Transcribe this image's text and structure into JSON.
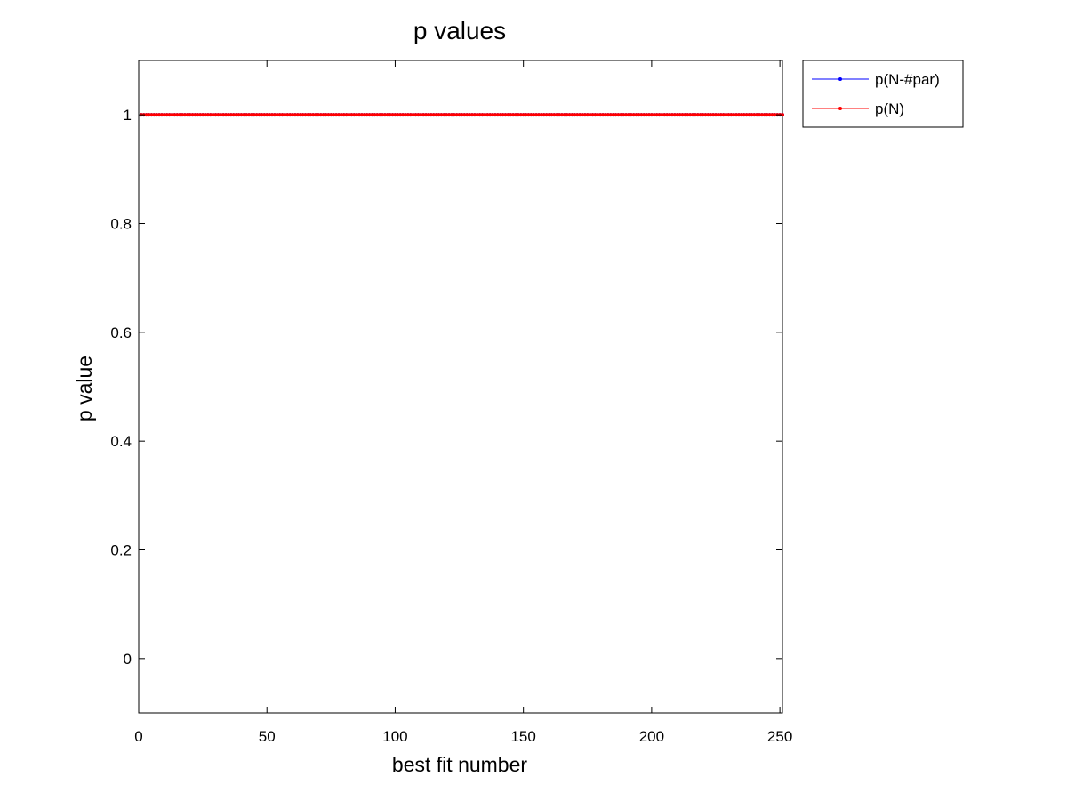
{
  "chart_data": {
    "type": "line",
    "title": "p values",
    "xlabel": "best fit number",
    "ylabel": "p value",
    "xlim": [
      0,
      251
    ],
    "ylim": [
      -0.1,
      1.1
    ],
    "xticks": [
      0,
      50,
      100,
      150,
      200,
      250
    ],
    "xtick_labels": [
      "0",
      "50",
      "100",
      "150",
      "200",
      "250"
    ],
    "yticks": [
      0,
      0.2,
      0.4,
      0.6,
      0.8,
      1
    ],
    "ytick_labels": [
      "0",
      "0.2",
      "0.4",
      "0.6",
      "0.8",
      "1"
    ],
    "grid": false,
    "legend_position": "outside-top-right",
    "series": [
      {
        "name": "p(N-#par)",
        "color": "#0000ff",
        "marker": "dot",
        "x_start": 1,
        "x_end": 251,
        "value": 1
      },
      {
        "name": "p(N)",
        "color": "#ff0000",
        "marker": "dot",
        "x_start": 1,
        "x_end": 251,
        "value": 1
      }
    ]
  }
}
